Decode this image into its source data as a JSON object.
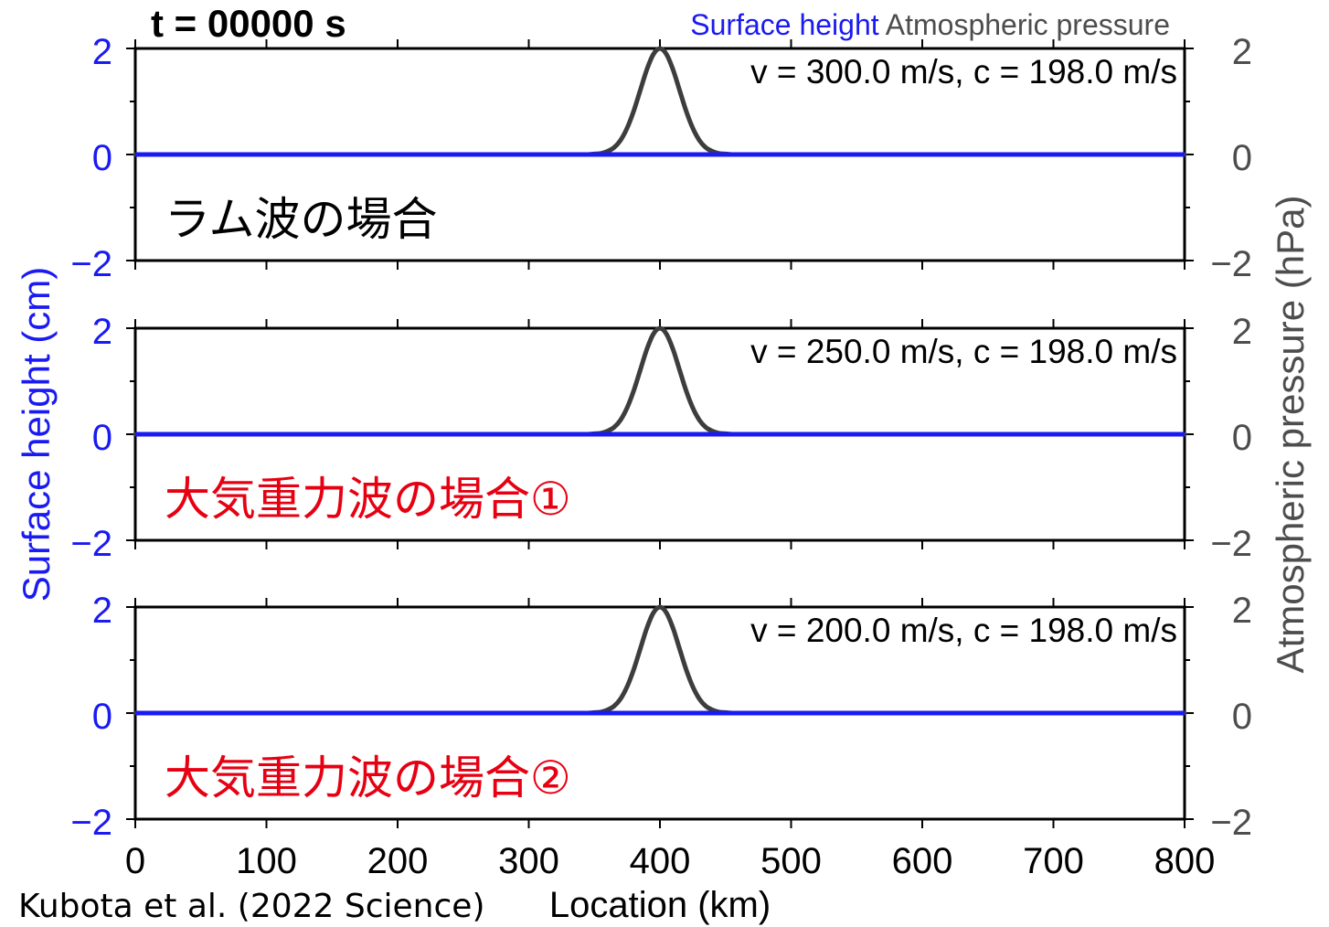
{
  "credit": "Kubota et al. (2022 Science)",
  "colors": {
    "surface": "#1a1af2",
    "pressure": "#3d3d3d",
    "pressure_text": "#4d4d4d",
    "frame": "#000000",
    "text": "#000000",
    "background": "#ffffff"
  },
  "chart_data": {
    "type": "line",
    "title": "t = 00000 s",
    "legend": [
      "Surface height",
      "Atmospheric pressure"
    ],
    "legend_placement": "top-right",
    "xlabel": "Location (km)",
    "ylabel_left": "Surface height (cm)",
    "ylabel_right": "Atmospheric pressure (hPa)",
    "xlim": [
      0,
      800
    ],
    "xticks": [
      0,
      100,
      200,
      300,
      400,
      500,
      600,
      700,
      800
    ],
    "xtick_labels": [
      "0",
      "100",
      "200",
      "300",
      "400",
      "500",
      "600",
      "700",
      "800"
    ],
    "ylim_left": [
      -2,
      2
    ],
    "ylim_right": [
      -2,
      2
    ],
    "yticks": [
      2,
      0,
      -2
    ],
    "ytick_labels": [
      "2",
      "0",
      "−2"
    ],
    "yminor_ticks": [
      1,
      -1
    ],
    "grid": false,
    "panels": [
      {
        "annotation": "v = 300.0 m/s, c = 198.0 m/s",
        "label": "ラム波の場合",
        "label_color": "#000000",
        "atmospheric_pressure": {
          "x": [
            0,
            345,
            350,
            355,
            360,
            365,
            370,
            375,
            380,
            385,
            390,
            395,
            400,
            405,
            410,
            415,
            420,
            425,
            430,
            435,
            440,
            445,
            450,
            455,
            800
          ],
          "y": [
            0,
            0,
            0.01,
            0.02,
            0.06,
            0.13,
            0.27,
            0.5,
            0.82,
            1.21,
            1.6,
            1.89,
            2,
            1.89,
            1.6,
            1.21,
            0.82,
            0.5,
            0.27,
            0.13,
            0.06,
            0.02,
            0.01,
            0,
            0
          ]
        },
        "surface_height": {
          "x": [
            0,
            800
          ],
          "y": [
            0,
            0
          ]
        }
      },
      {
        "annotation": "v = 250.0 m/s, c = 198.0 m/s",
        "label": "大気重力波の場合①",
        "label_color": "#e60012",
        "atmospheric_pressure": {
          "x": [
            0,
            345,
            350,
            355,
            360,
            365,
            370,
            375,
            380,
            385,
            390,
            395,
            400,
            405,
            410,
            415,
            420,
            425,
            430,
            435,
            440,
            445,
            450,
            455,
            800
          ],
          "y": [
            0,
            0,
            0.01,
            0.02,
            0.06,
            0.13,
            0.27,
            0.5,
            0.82,
            1.21,
            1.6,
            1.89,
            2,
            1.89,
            1.6,
            1.21,
            0.82,
            0.5,
            0.27,
            0.13,
            0.06,
            0.02,
            0.01,
            0,
            0
          ]
        },
        "surface_height": {
          "x": [
            0,
            800
          ],
          "y": [
            0,
            0
          ]
        }
      },
      {
        "annotation": "v = 200.0 m/s, c = 198.0 m/s",
        "label": "大気重力波の場合②",
        "label_color": "#e60012",
        "atmospheric_pressure": {
          "x": [
            0,
            345,
            350,
            355,
            360,
            365,
            370,
            375,
            380,
            385,
            390,
            395,
            400,
            405,
            410,
            415,
            420,
            425,
            430,
            435,
            440,
            445,
            450,
            455,
            800
          ],
          "y": [
            0,
            0,
            0.01,
            0.02,
            0.06,
            0.13,
            0.27,
            0.5,
            0.82,
            1.21,
            1.6,
            1.89,
            2,
            1.89,
            1.6,
            1.21,
            0.82,
            0.5,
            0.27,
            0.13,
            0.06,
            0.02,
            0.01,
            0,
            0
          ]
        },
        "surface_height": {
          "x": [
            0,
            800
          ],
          "y": [
            0,
            0
          ]
        }
      }
    ]
  }
}
